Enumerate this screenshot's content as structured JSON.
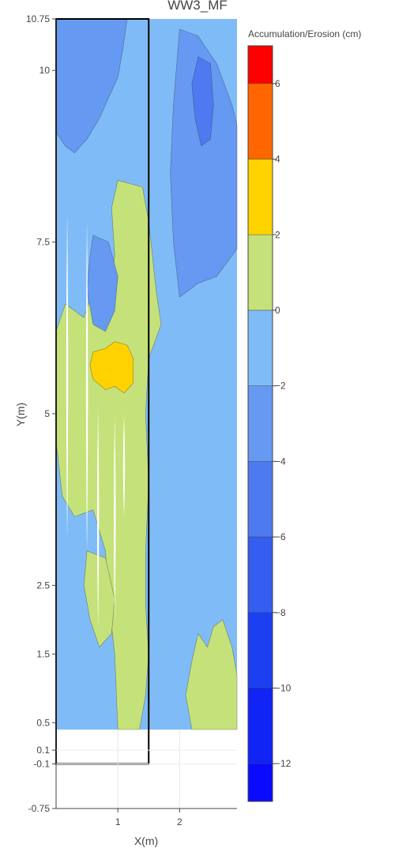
{
  "chart_data": {
    "type": "heatmap",
    "subtype": "filled contour",
    "title": "WW3_MF",
    "xlabel": "X(m)",
    "ylabel": "Y(m)",
    "xlim": [
      0,
      2.93
    ],
    "ylim": [
      -0.75,
      10.75
    ],
    "x_ticks": [
      1,
      2
    ],
    "y_ticks": [
      {
        "value": 10.75,
        "label": "10.75"
      },
      {
        "value": 10,
        "label": "10"
      },
      {
        "value": 7.5,
        "label": "7.5"
      },
      {
        "value": 5,
        "label": "5"
      },
      {
        "value": 2.5,
        "label": "2.5"
      },
      {
        "value": 1.5,
        "label": "1.5"
      },
      {
        "value": 0.5,
        "label": "0.5"
      },
      {
        "value": 0.1,
        "label": "0.1"
      },
      {
        "value": -0.1,
        "label": "-0.1"
      },
      {
        "value": -0.75,
        "label": "-0.75"
      }
    ],
    "data_extent": {
      "x": [
        0,
        2.93
      ],
      "y": [
        0.4,
        10.75
      ]
    },
    "box": {
      "x0": 0,
      "x1": 1.5,
      "y0": -0.1,
      "y1": 10.75
    },
    "colorbar": {
      "title": "Accumulation/Erosion (cm)",
      "range": [
        -13,
        7
      ],
      "ticks": [
        6,
        4,
        2,
        0,
        -2,
        -4,
        -6,
        -8,
        -10,
        -12
      ],
      "tick_labels": [
        "6",
        "4",
        "2",
        "0",
        "−2",
        "−4",
        "−6",
        "−8",
        "−10",
        "−12"
      ],
      "bands": [
        {
          "from": 6,
          "to": 7,
          "color": "#ff0000"
        },
        {
          "from": 4,
          "to": 6,
          "color": "#ff6600"
        },
        {
          "from": 2,
          "to": 4,
          "color": "#ffd200"
        },
        {
          "from": 0,
          "to": 2,
          "color": "#c5e17a"
        },
        {
          "from": -2,
          "to": 0,
          "color": "#7fbcf7"
        },
        {
          "from": -4,
          "to": -2,
          "color": "#6699f2"
        },
        {
          "from": -6,
          "to": -4,
          "color": "#4d7af0"
        },
        {
          "from": -8,
          "to": -6,
          "color": "#335ef0"
        },
        {
          "from": -10,
          "to": -8,
          "color": "#1a40f2"
        },
        {
          "from": -12,
          "to": -10,
          "color": "#1024f5"
        },
        {
          "from": -13,
          "to": -12,
          "color": "#0a0aff"
        }
      ]
    },
    "regions": [
      {
        "name": "top-left-erosion",
        "level": "-2 to -4",
        "color": "#6699f2",
        "polygon": [
          [
            0,
            10.75
          ],
          [
            1.15,
            10.75
          ],
          [
            1.08,
            10.3
          ],
          [
            1.0,
            9.9
          ],
          [
            0.85,
            9.6
          ],
          [
            0.7,
            9.3
          ],
          [
            0.5,
            9.0
          ],
          [
            0.3,
            8.8
          ],
          [
            0.15,
            8.9
          ],
          [
            0,
            9.1
          ]
        ]
      },
      {
        "name": "top-right-erosion",
        "level": "-2 to -4",
        "color": "#6699f2",
        "polygon": [
          [
            2.0,
            10.6
          ],
          [
            2.3,
            10.5
          ],
          [
            2.6,
            10.1
          ],
          [
            2.85,
            9.5
          ],
          [
            2.93,
            9.2
          ],
          [
            2.93,
            7.4
          ],
          [
            2.6,
            7.0
          ],
          [
            2.3,
            6.9
          ],
          [
            2.0,
            6.7
          ],
          [
            1.9,
            7.5
          ],
          [
            1.85,
            8.5
          ],
          [
            1.9,
            9.5
          ]
        ]
      },
      {
        "name": "right-deep-erosion",
        "level": "-4 to -6",
        "color": "#4d7af0",
        "polygon": [
          [
            2.3,
            10.2
          ],
          [
            2.5,
            10.1
          ],
          [
            2.55,
            9.5
          ],
          [
            2.5,
            9.0
          ],
          [
            2.35,
            8.9
          ],
          [
            2.25,
            9.3
          ],
          [
            2.2,
            9.8
          ]
        ]
      },
      {
        "name": "center-accumulation",
        "level": "0 to 2",
        "color": "#c5e17a",
        "polygon": [
          [
            1.0,
            8.4
          ],
          [
            1.4,
            8.3
          ],
          [
            1.5,
            7.8
          ],
          [
            1.62,
            6.8
          ],
          [
            1.7,
            6.3
          ],
          [
            1.5,
            5.8
          ],
          [
            1.45,
            5.0
          ],
          [
            1.5,
            4.0
          ],
          [
            1.45,
            3.0
          ],
          [
            1.45,
            2.2
          ],
          [
            1.5,
            1.5
          ],
          [
            1.45,
            0.9
          ],
          [
            1.35,
            0.4
          ],
          [
            1.0,
            0.4
          ],
          [
            0.95,
            1.5
          ],
          [
            0.85,
            2.3
          ],
          [
            0.8,
            3.0
          ],
          [
            0.6,
            3.6
          ],
          [
            0.3,
            3.5
          ],
          [
            0.1,
            3.8
          ],
          [
            0,
            4.6
          ],
          [
            0,
            6.2
          ],
          [
            0.15,
            6.6
          ],
          [
            0.45,
            6.4
          ],
          [
            0.6,
            6.8
          ],
          [
            0.85,
            6.6
          ],
          [
            0.95,
            7.3
          ],
          [
            0.9,
            8.0
          ]
        ]
      },
      {
        "name": "center-erosion",
        "level": "-2 to -4",
        "color": "#6699f2",
        "polygon": [
          [
            0.6,
            7.6
          ],
          [
            0.85,
            7.5
          ],
          [
            1.0,
            7.0
          ],
          [
            0.95,
            6.5
          ],
          [
            0.8,
            6.2
          ],
          [
            0.6,
            6.3
          ],
          [
            0.5,
            6.8
          ],
          [
            0.55,
            7.3
          ]
        ]
      },
      {
        "name": "lower-left-accumulation",
        "level": "0 to 2",
        "color": "#c5e17a",
        "polygon": [
          [
            0.5,
            3.0
          ],
          [
            0.8,
            2.9
          ],
          [
            0.95,
            2.3
          ],
          [
            0.9,
            1.8
          ],
          [
            0.7,
            1.6
          ],
          [
            0.55,
            2.0
          ],
          [
            0.45,
            2.5
          ]
        ]
      },
      {
        "name": "bottom-right-accumulation",
        "level": "0 to 2",
        "color": "#c5e17a",
        "polygon": [
          [
            2.2,
            0.4
          ],
          [
            2.93,
            0.4
          ],
          [
            2.93,
            1.2
          ],
          [
            2.85,
            1.6
          ],
          [
            2.7,
            2.0
          ],
          [
            2.55,
            1.9
          ],
          [
            2.45,
            1.6
          ],
          [
            2.3,
            1.8
          ],
          [
            2.2,
            1.4
          ],
          [
            2.1,
            0.9
          ]
        ]
      },
      {
        "name": "center-peak-accumulation",
        "level": "2 to 4",
        "color": "#ffd200",
        "polygon": [
          [
            0.6,
            5.9
          ],
          [
            0.8,
            5.95
          ],
          [
            0.95,
            6.05
          ],
          [
            1.15,
            6.0
          ],
          [
            1.25,
            5.8
          ],
          [
            1.25,
            5.45
          ],
          [
            1.1,
            5.3
          ],
          [
            0.95,
            5.4
          ],
          [
            0.8,
            5.35
          ],
          [
            0.6,
            5.5
          ],
          [
            0.55,
            5.7
          ]
        ]
      }
    ],
    "gaps": [
      {
        "x": 0.18,
        "y0": 3.2,
        "y1": 7.9
      },
      {
        "x": 0.5,
        "y0": 3.0,
        "y1": 7.8
      },
      {
        "x": 0.68,
        "y0": 1.9,
        "y1": 5.1
      },
      {
        "x": 0.95,
        "y0": 2.0,
        "y1": 5.0
      },
      {
        "x": 1.1,
        "y0": 3.5,
        "y1": 5.0
      }
    ]
  }
}
